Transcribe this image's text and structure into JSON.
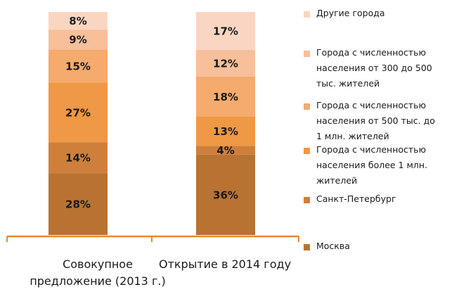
{
  "chart_data": {
    "type": "bar",
    "stacked": true,
    "percent": true,
    "categories": [
      "Совокупное предложение (2013 г.)",
      "Открытие в 2014 году"
    ],
    "category_lines": [
      [
        "Совокупное",
        "предложение (2013 г.)"
      ],
      [
        "Открытие в 2014 году"
      ]
    ],
    "series": [
      {
        "name": "Москва",
        "values": [
          28,
          36
        ],
        "labels": [
          "28%",
          "36%"
        ],
        "color": "#b87333"
      },
      {
        "name": "Санкт-Петербург",
        "values": [
          14,
          4
        ],
        "labels": [
          "14%",
          "4%"
        ],
        "color": "#cf7f3c"
      },
      {
        "name": "Города с численностью населения более 1 млн. жителей",
        "values": [
          27,
          13
        ],
        "labels": [
          "27%",
          "13%"
        ],
        "color": "#ef9845"
      },
      {
        "name": "Города с численностью населения от 500 тыс. до 1 млн. жителей",
        "values": [
          15,
          18
        ],
        "labels": [
          "15%",
          "18%"
        ],
        "color": "#f5aa6e"
      },
      {
        "name": "Города с численностью населения от 300 до 500 тыс. жителей",
        "values": [
          9,
          12
        ],
        "labels": [
          "9%",
          "12%"
        ],
        "color": "#f7bf9a"
      },
      {
        "name": "Другие города",
        "values": [
          8,
          17
        ],
        "labels": [
          "8%",
          "17%"
        ],
        "color": "#fad6c2"
      }
    ],
    "legend_lines": [
      [
        "Москва"
      ],
      [
        "Санкт-Петербург"
      ],
      [
        "Города с численностью",
        "населения более 1 млн.",
        "жителей"
      ],
      [
        "Города с численностью",
        "населения от 500 тыс. до",
        "1 млн. жителей"
      ],
      [
        "Города с численностью",
        "населения от 300 до 500",
        "тыс. жителей"
      ],
      [
        "Другие города"
      ]
    ],
    "ylim": [
      0,
      100
    ],
    "legend_position": "right",
    "grid": false,
    "axis_color": "#e8892b"
  }
}
